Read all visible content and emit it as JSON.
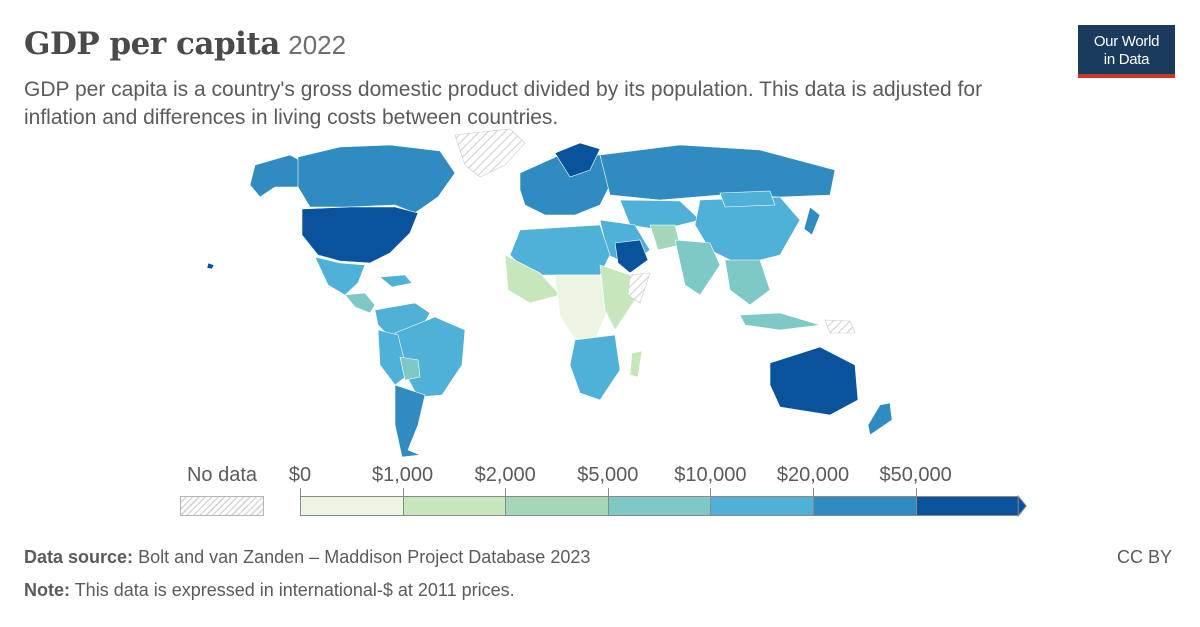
{
  "header": {
    "title": "GDP per capita",
    "year": "2022",
    "subtitle": "GDP per capita is a country's gross domestic product divided by its population. This data is adjusted for inflation and differences in living costs between countries.",
    "logo_line1": "Our World",
    "logo_line2": "in Data"
  },
  "legend": {
    "no_data_label": "No data",
    "bins": [
      {
        "label": "$0",
        "color": "#ebf5e1"
      },
      {
        "label": "$1,000",
        "color": "#c6e6bb"
      },
      {
        "label": "$2,000",
        "color": "#a3d7b7"
      },
      {
        "label": "$5,000",
        "color": "#7ec8c6"
      },
      {
        "label": "$10,000",
        "color": "#4fb0d8"
      },
      {
        "label": "$20,000",
        "color": "#2f8bc0"
      },
      {
        "label": "$50,000",
        "color": "#09539c"
      }
    ]
  },
  "footer": {
    "source_label": "Data source:",
    "source_text": "Bolt and van Zanden – Maddison Project Database 2023",
    "note_label": "Note:",
    "note_text": "This data is expressed in international-$ at 2011 prices.",
    "license": "CC BY"
  },
  "colors": {
    "no_data_hatch": "#d6d6d6",
    "logo_bg": "#1a3a5e",
    "logo_accent": "#c8382a"
  }
}
